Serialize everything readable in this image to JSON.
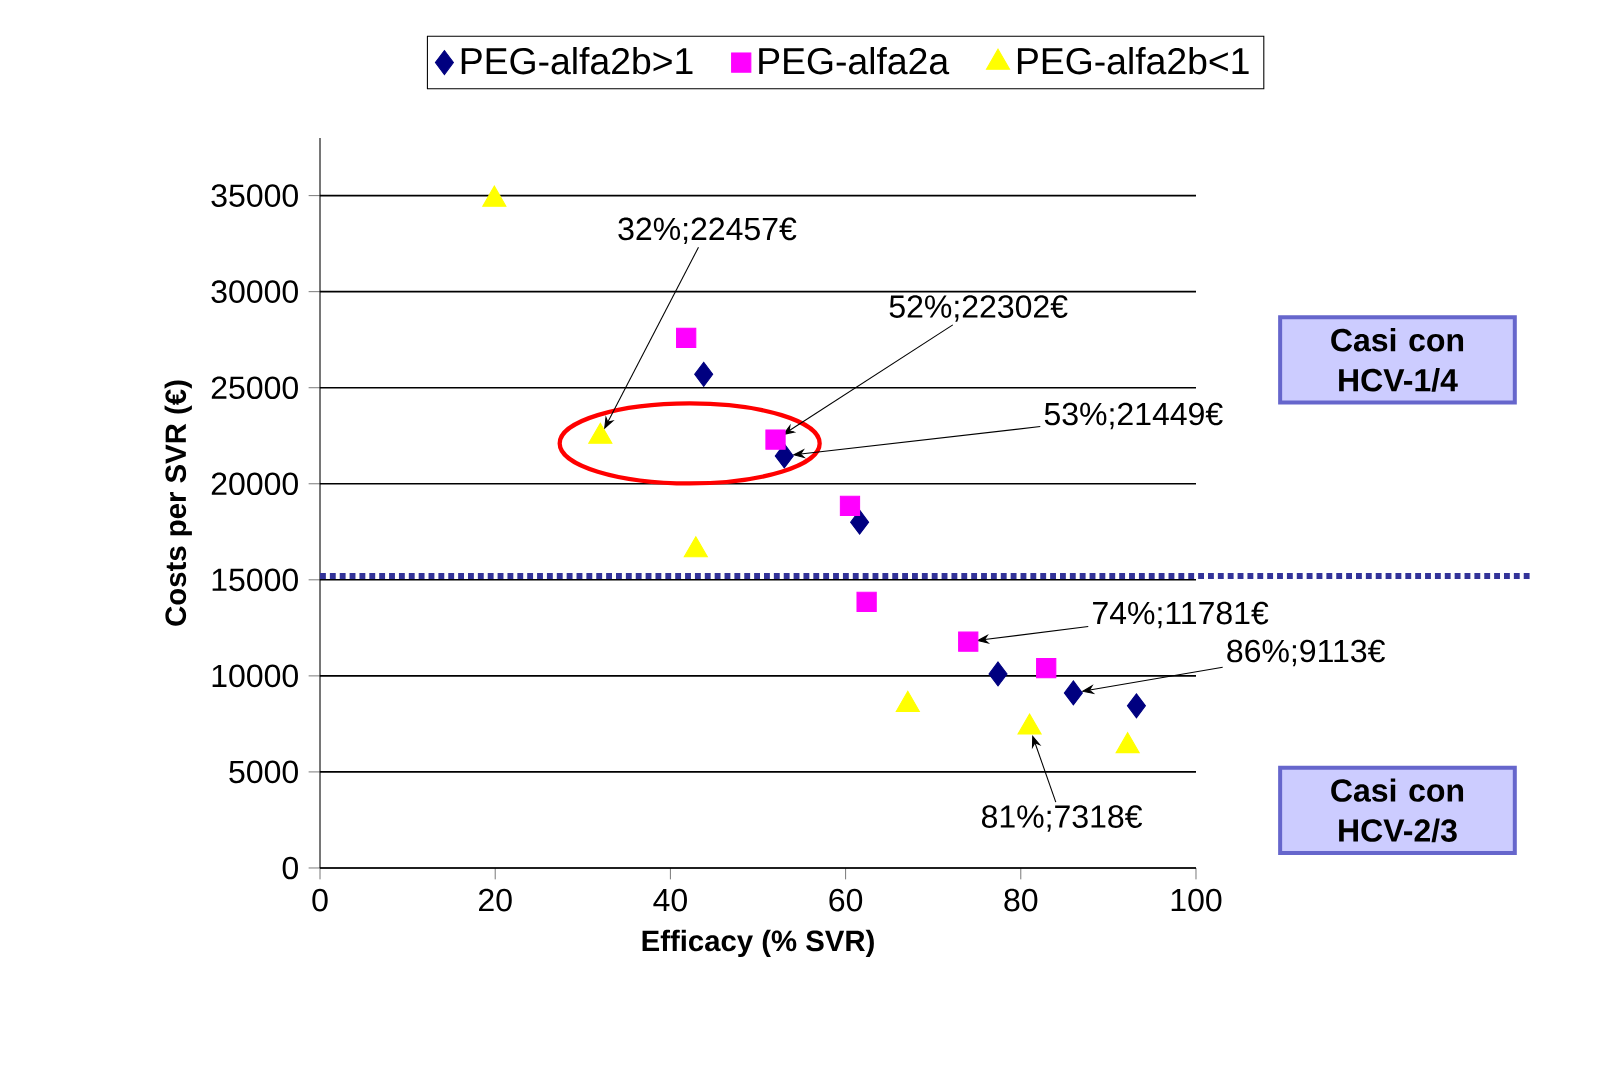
{
  "chart_data": {
    "type": "scatter",
    "xlabel": "Efficacy (% SVR)",
    "ylabel": "Costs per SVR (€)",
    "xlim": [
      0,
      100
    ],
    "xticks": [
      0,
      20,
      40,
      60,
      80,
      100
    ],
    "ylim": [
      0,
      38000
    ],
    "yticks": [
      0,
      5000,
      10000,
      15000,
      20000,
      25000,
      30000,
      35000
    ],
    "grid": "y",
    "legend": "top",
    "series": [
      {
        "name": "PEG-alfa2b>1",
        "color": "#000080",
        "marker": "diamond",
        "x": [
          43.8,
          53,
          61.6,
          77.4,
          86,
          93.2
        ],
        "values": [
          25700,
          21449,
          18000,
          10100,
          9113,
          8440
        ]
      },
      {
        "name": "PEG-alfa2a",
        "color": "#ff00ff",
        "marker": "square",
        "x": [
          41.8,
          52,
          60.5,
          62.4,
          74,
          82.9
        ],
        "values": [
          27600,
          22302,
          18850,
          13850,
          11781,
          10400
        ]
      },
      {
        "name": "PEG-alfa2b<1",
        "color": "#ffff00",
        "marker": "triangle",
        "x": [
          19.9,
          32,
          42.9,
          67.1,
          81,
          92.2
        ],
        "values": [
          34800,
          22457,
          16550,
          8500,
          7318,
          6350
        ]
      }
    ],
    "ref_lines": [
      {
        "axis": "y",
        "value": 15200,
        "color": "#333399",
        "line_style": "dotted"
      }
    ],
    "annotations": [
      {
        "text": "32%;22457€",
        "x": 32,
        "y": 22457
      },
      {
        "text": "52%;22302€",
        "x": 52,
        "y": 22302
      },
      {
        "text": "53%;21449€",
        "x": 53,
        "y": 21449
      },
      {
        "text": "74%;11781€",
        "x": 74,
        "y": 11781
      },
      {
        "text": "86%;9113€",
        "x": 86,
        "y": 9113
      },
      {
        "text": "81%;7318€",
        "x": 81,
        "y": 7318
      },
      "Casi con HCV-1/4",
      "Casi con HCV-2/3"
    ]
  }
}
